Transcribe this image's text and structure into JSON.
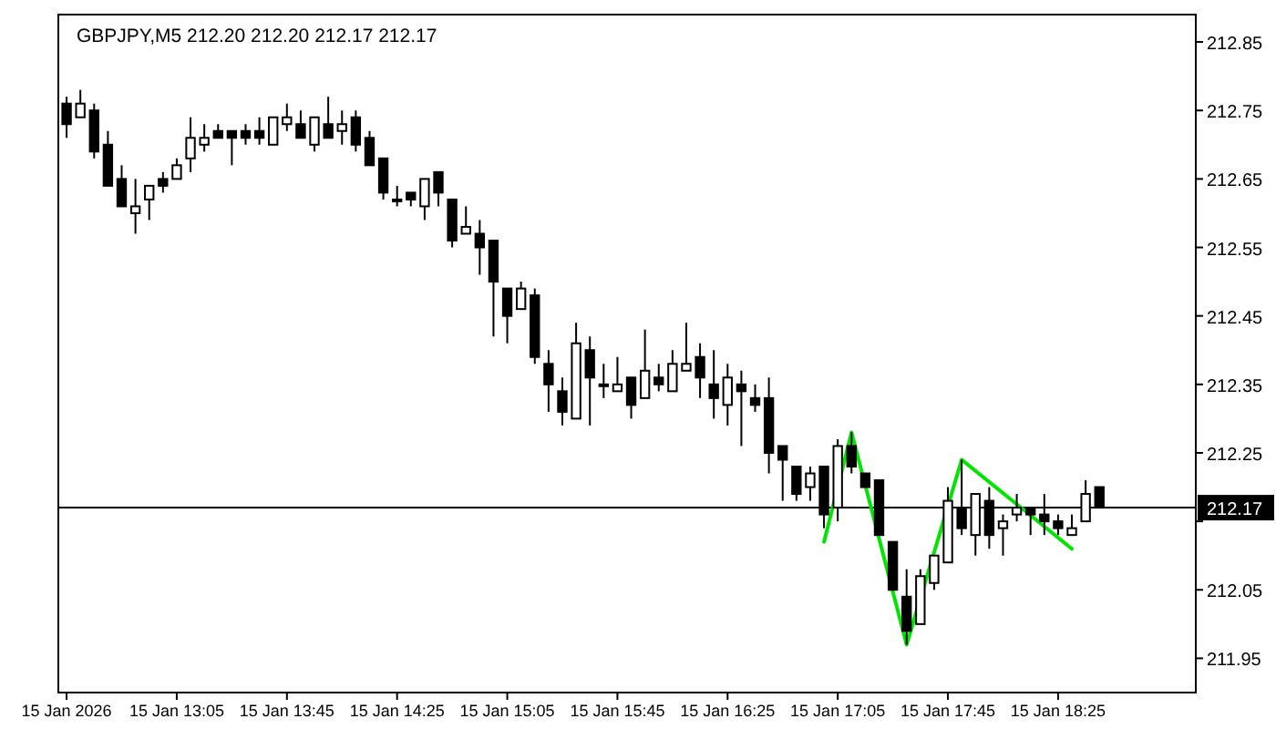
{
  "chart_data": {
    "type": "candlestick",
    "title": "GBPJPY,M5  212.20 212.20 212.17 212.17",
    "x": [
      "2026-01-15T12:25",
      "2026-01-15T12:30",
      "2026-01-15T12:35",
      "2026-01-15T12:40",
      "2026-01-15T12:45",
      "2026-01-15T12:50",
      "2026-01-15T12:55",
      "2026-01-15T13:00",
      "2026-01-15T13:05",
      "2026-01-15T13:10",
      "2026-01-15T13:15",
      "2026-01-15T13:20",
      "2026-01-15T13:25",
      "2026-01-15T13:30",
      "2026-01-15T13:35",
      "2026-01-15T13:40",
      "2026-01-15T13:45",
      "2026-01-15T13:50",
      "2026-01-15T13:55",
      "2026-01-15T14:00",
      "2026-01-15T14:05",
      "2026-01-15T14:10",
      "2026-01-15T14:15",
      "2026-01-15T14:20",
      "2026-01-15T14:25",
      "2026-01-15T14:30",
      "2026-01-15T14:35",
      "2026-01-15T14:40",
      "2026-01-15T14:45",
      "2026-01-15T14:50",
      "2026-01-15T14:55",
      "2026-01-15T15:00",
      "2026-01-15T15:05",
      "2026-01-15T15:10",
      "2026-01-15T15:15",
      "2026-01-15T15:20",
      "2026-01-15T15:25",
      "2026-01-15T15:30",
      "2026-01-15T15:35",
      "2026-01-15T15:40",
      "2026-01-15T15:45",
      "2026-01-15T15:50",
      "2026-01-15T15:55",
      "2026-01-15T16:00",
      "2026-01-15T16:05",
      "2026-01-15T16:10",
      "2026-01-15T16:15",
      "2026-01-15T16:20",
      "2026-01-15T16:25",
      "2026-01-15T16:30",
      "2026-01-15T16:35",
      "2026-01-15T16:40",
      "2026-01-15T16:45",
      "2026-01-15T16:50",
      "2026-01-15T16:55",
      "2026-01-15T17:00",
      "2026-01-15T17:05",
      "2026-01-15T17:10",
      "2026-01-15T17:15",
      "2026-01-15T17:20",
      "2026-01-15T17:25",
      "2026-01-15T17:30",
      "2026-01-15T17:35",
      "2026-01-15T17:40",
      "2026-01-15T17:45",
      "2026-01-15T17:50",
      "2026-01-15T17:55",
      "2026-01-15T18:00",
      "2026-01-15T18:05",
      "2026-01-15T18:10",
      "2026-01-15T18:15",
      "2026-01-15T18:20",
      "2026-01-15T18:25",
      "2026-01-15T18:30",
      "2026-01-15T18:35",
      "2026-01-15T18:40"
    ],
    "ohlc": [
      [
        212.76,
        212.77,
        212.71,
        212.73
      ],
      [
        212.74,
        212.78,
        212.74,
        212.76
      ],
      [
        212.75,
        212.76,
        212.68,
        212.69
      ],
      [
        212.7,
        212.72,
        212.64,
        212.64
      ],
      [
        212.65,
        212.67,
        212.61,
        212.61
      ],
      [
        212.6,
        212.65,
        212.57,
        212.61
      ],
      [
        212.62,
        212.64,
        212.59,
        212.64
      ],
      [
        212.65,
        212.66,
        212.63,
        212.64
      ],
      [
        212.65,
        212.68,
        212.65,
        212.67
      ],
      [
        212.68,
        212.74,
        212.66,
        212.71
      ],
      [
        212.7,
        212.73,
        212.69,
        212.71
      ],
      [
        212.72,
        212.73,
        212.71,
        212.71
      ],
      [
        212.72,
        212.72,
        212.67,
        212.71
      ],
      [
        212.72,
        212.73,
        212.7,
        212.71
      ],
      [
        212.72,
        212.74,
        212.7,
        212.71
      ],
      [
        212.7,
        212.74,
        212.7,
        212.74
      ],
      [
        212.73,
        212.76,
        212.72,
        212.74
      ],
      [
        212.73,
        212.75,
        212.71,
        212.71
      ],
      [
        212.7,
        212.74,
        212.69,
        212.74
      ],
      [
        212.73,
        212.77,
        212.71,
        212.71
      ],
      [
        212.72,
        212.75,
        212.7,
        212.73
      ],
      [
        212.74,
        212.75,
        212.69,
        212.7
      ],
      [
        212.71,
        212.72,
        212.67,
        212.67
      ],
      [
        212.68,
        212.68,
        212.62,
        212.63
      ],
      [
        212.62,
        212.64,
        212.61,
        212.62
      ],
      [
        212.63,
        212.63,
        212.61,
        212.62
      ],
      [
        212.61,
        212.65,
        212.59,
        212.65
      ],
      [
        212.66,
        212.66,
        212.61,
        212.63
      ],
      [
        212.62,
        212.62,
        212.55,
        212.56
      ],
      [
        212.57,
        212.61,
        212.57,
        212.58
      ],
      [
        212.57,
        212.59,
        212.51,
        212.55
      ],
      [
        212.56,
        212.56,
        212.42,
        212.5
      ],
      [
        212.49,
        212.49,
        212.41,
        212.45
      ],
      [
        212.46,
        212.5,
        212.46,
        212.49
      ],
      [
        212.48,
        212.49,
        212.38,
        212.39
      ],
      [
        212.38,
        212.4,
        212.31,
        212.35
      ],
      [
        212.34,
        212.36,
        212.29,
        212.31
      ],
      [
        212.3,
        212.44,
        212.3,
        212.41
      ],
      [
        212.4,
        212.42,
        212.29,
        212.36
      ],
      [
        212.35,
        212.38,
        212.33,
        212.35
      ],
      [
        212.34,
        212.39,
        212.34,
        212.35
      ],
      [
        212.36,
        212.36,
        212.3,
        212.32
      ],
      [
        212.33,
        212.43,
        212.33,
        212.37
      ],
      [
        212.36,
        212.38,
        212.34,
        212.35
      ],
      [
        212.34,
        212.4,
        212.34,
        212.38
      ],
      [
        212.37,
        212.44,
        212.37,
        212.38
      ],
      [
        212.39,
        212.41,
        212.33,
        212.36
      ],
      [
        212.35,
        212.4,
        212.3,
        212.33
      ],
      [
        212.32,
        212.38,
        212.29,
        212.36
      ],
      [
        212.35,
        212.37,
        212.26,
        212.34
      ],
      [
        212.33,
        212.35,
        212.31,
        212.32
      ],
      [
        212.33,
        212.36,
        212.22,
        212.25
      ],
      [
        212.26,
        212.26,
        212.18,
        212.24
      ],
      [
        212.23,
        212.23,
        212.18,
        212.19
      ],
      [
        212.2,
        212.23,
        212.18,
        212.22
      ],
      [
        212.23,
        212.23,
        212.14,
        212.16
      ],
      [
        212.17,
        212.27,
        212.15,
        212.26
      ],
      [
        212.26,
        212.28,
        212.22,
        212.23
      ],
      [
        212.22,
        212.22,
        212.2,
        212.2
      ],
      [
        212.21,
        212.21,
        212.13,
        212.13
      ],
      [
        212.12,
        212.12,
        212.05,
        212.05
      ],
      [
        212.04,
        212.08,
        211.97,
        211.99
      ],
      [
        212.0,
        212.08,
        212.0,
        212.07
      ],
      [
        212.06,
        212.1,
        212.05,
        212.1
      ],
      [
        212.09,
        212.2,
        212.09,
        212.18
      ],
      [
        212.17,
        212.24,
        212.13,
        212.14
      ],
      [
        212.13,
        212.19,
        212.1,
        212.19
      ],
      [
        212.18,
        212.2,
        212.11,
        212.13
      ],
      [
        212.14,
        212.16,
        212.1,
        212.15
      ],
      [
        212.16,
        212.19,
        212.15,
        212.17
      ],
      [
        212.17,
        212.17,
        212.13,
        212.16
      ],
      [
        212.16,
        212.19,
        212.13,
        212.15
      ],
      [
        212.15,
        212.16,
        212.13,
        212.14
      ],
      [
        212.13,
        212.16,
        212.13,
        212.14
      ],
      [
        212.15,
        212.21,
        212.15,
        212.19
      ],
      [
        212.2,
        212.2,
        212.17,
        212.17
      ]
    ],
    "series": [
      {
        "type": "line",
        "color": "#00e600",
        "x": [
          "2026-01-15T17:00",
          "2026-01-15T17:10",
          "2026-01-15T17:30",
          "2026-01-15T17:50",
          "2026-01-15T18:30"
        ],
        "values": [
          212.12,
          212.28,
          211.97,
          212.24,
          212.11
        ]
      }
    ],
    "xlim": [
      "2026-01-15T12:22",
      "2026-01-15T19:15"
    ],
    "xticks": [
      {
        "value": "2026-01-15T12:25",
        "label": "15 Jan 2026"
      },
      {
        "value": "2026-01-15T13:05",
        "label": "15 Jan 13:05"
      },
      {
        "value": "2026-01-15T13:45",
        "label": "15 Jan 13:45"
      },
      {
        "value": "2026-01-15T14:25",
        "label": "15 Jan 14:25"
      },
      {
        "value": "2026-01-15T15:05",
        "label": "15 Jan 15:05"
      },
      {
        "value": "2026-01-15T15:45",
        "label": "15 Jan 15:45"
      },
      {
        "value": "2026-01-15T16:25",
        "label": "15 Jan 16:25"
      },
      {
        "value": "2026-01-15T17:05",
        "label": "15 Jan 17:05"
      },
      {
        "value": "2026-01-15T17:45",
        "label": "15 Jan 17:45"
      },
      {
        "value": "2026-01-15T18:25",
        "label": "15 Jan 18:25"
      }
    ],
    "ylim": [
      211.9,
      212.89
    ],
    "yticks": [
      211.95,
      212.05,
      {
        "value": 212.15,
        "label": null
      },
      212.25,
      212.35,
      212.45,
      212.55,
      212.65,
      212.75,
      212.85
    ],
    "ref_lines": [
      {
        "axis": "y",
        "value": 212.17,
        "label": "212.17",
        "color": "#000000"
      }
    ]
  }
}
